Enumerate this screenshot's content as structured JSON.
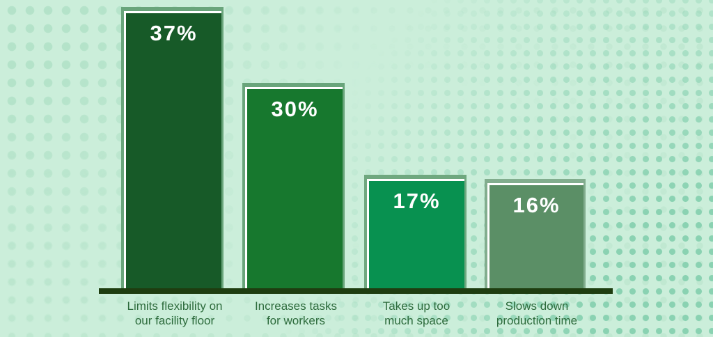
{
  "background": {
    "color": "#cbeeda",
    "dot_faint_color": "#bde6cf",
    "dot_mid_color": "#b2e2c8",
    "dot_strong_color": "#8ad2b2"
  },
  "axis": {
    "color": "#1e3d10"
  },
  "chart_data": {
    "type": "bar",
    "title": "",
    "xlabel": "",
    "ylabel": "",
    "ylim": [
      0,
      40
    ],
    "grid": false,
    "legend": "none",
    "value_text_color": "#ffffff",
    "label_color": "#2d6b3c",
    "categories": [
      "Limits flexibility on our facility floor",
      "Increases tasks for workers",
      "Takes up too much space",
      "Slows down production time"
    ],
    "values": [
      37,
      30,
      17,
      16
    ],
    "bars": [
      {
        "value": 37,
        "value_label": "37%",
        "label_line1": "Limits flexibility on",
        "label_line2": "our facility floor",
        "fill": "#175a28",
        "offset_fill": "#69a57b"
      },
      {
        "value": 30,
        "value_label": "30%",
        "label_line1": "Increases tasks",
        "label_line2": "for workers",
        "fill": "#17782e",
        "offset_fill": "#69a57b"
      },
      {
        "value": 17,
        "value_label": "17%",
        "label_line1": "Takes up too",
        "label_line2": "much space",
        "fill": "#089150",
        "offset_fill": "#6fa87f"
      },
      {
        "value": 16,
        "value_label": "16%",
        "label_line1": "Slows down",
        "label_line2": "production time",
        "fill": "#5b8f66",
        "offset_fill": "#82ad8e"
      }
    ]
  }
}
